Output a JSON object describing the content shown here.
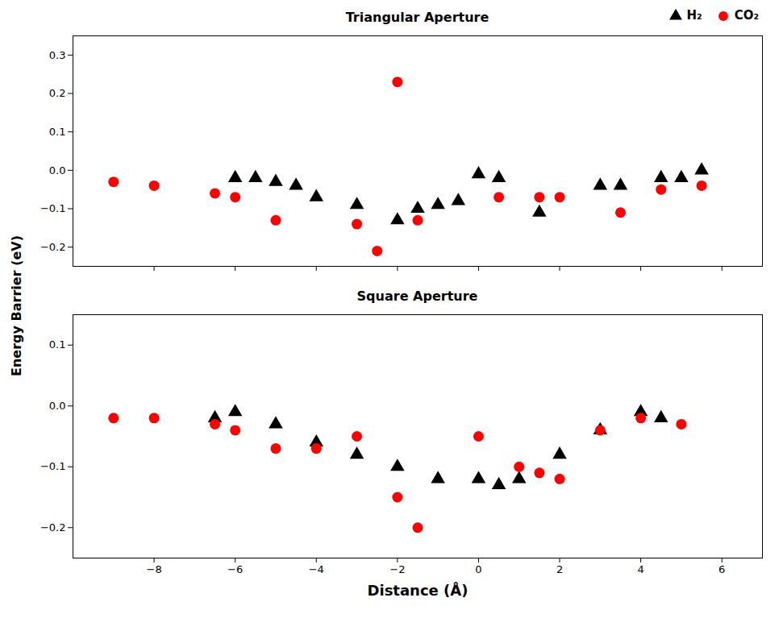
{
  "chart_data": [
    {
      "type": "scatter",
      "title": "Triangular Aperture",
      "ylabel": "Energy Barrier (eV)",
      "series": [
        {
          "name": "H₂",
          "color": "#000000",
          "marker": "triangle",
          "x": [
            -6.0,
            -5.5,
            -5.0,
            -4.5,
            -4.0,
            -3.0,
            -2.0,
            -1.5,
            -1.0,
            -0.5,
            0.0,
            0.5,
            1.5,
            3.0,
            3.5,
            4.5,
            5.0,
            5.5
          ],
          "values": [
            -0.02,
            -0.02,
            -0.03,
            -0.04,
            -0.07,
            -0.09,
            -0.13,
            -0.1,
            -0.09,
            -0.08,
            -0.01,
            -0.02,
            -0.11,
            -0.04,
            -0.04,
            -0.02,
            -0.02,
            0.0
          ]
        },
        {
          "name": "CO₂",
          "color": "#ff0000",
          "marker": "circle",
          "x": [
            -9.0,
            -8.0,
            -6.5,
            -6.0,
            -5.0,
            -3.0,
            -2.5,
            -2.0,
            -1.5,
            0.5,
            1.5,
            2.0,
            3.5,
            4.5,
            5.5
          ],
          "values": [
            -0.03,
            -0.04,
            -0.06,
            -0.07,
            -0.13,
            -0.14,
            -0.21,
            0.23,
            -0.13,
            -0.07,
            -0.07,
            -0.07,
            -0.11,
            -0.05,
            -0.04
          ]
        }
      ],
      "xlim": [
        -10,
        7
      ],
      "xticks": [
        -8,
        -6,
        -4,
        -2,
        0,
        2,
        4,
        6
      ],
      "ylim": [
        -0.25,
        0.35
      ],
      "yticks": [
        -0.2,
        -0.1,
        {
          "value": 0.0,
          "label": "0.0"
        },
        0.1,
        0.2,
        0.3
      ],
      "tick_labels": "y",
      "legend": "upper right",
      "grid": false
    },
    {
      "type": "scatter",
      "title": "Square Aperture",
      "xlabel": "Distance (Å)",
      "series": [
        {
          "name": "H₂",
          "color": "#000000",
          "marker": "triangle",
          "x": [
            -6.5,
            -6.0,
            -5.0,
            -4.0,
            -3.0,
            -2.0,
            -1.0,
            0.0,
            0.5,
            1.0,
            2.0,
            3.0,
            4.0,
            4.5
          ],
          "values": [
            -0.02,
            -0.01,
            -0.03,
            -0.06,
            -0.08,
            -0.1,
            -0.12,
            -0.12,
            -0.13,
            -0.12,
            -0.08,
            -0.04,
            -0.01,
            -0.02
          ]
        },
        {
          "name": "CO₂",
          "color": "#ff0000",
          "marker": "circle",
          "x": [
            -9.0,
            -8.0,
            -6.5,
            -6.0,
            -5.0,
            -4.0,
            -3.0,
            -2.0,
            -1.5,
            0.0,
            1.0,
            1.5,
            2.0,
            3.0,
            4.0,
            5.0
          ],
          "values": [
            -0.02,
            -0.02,
            -0.03,
            -0.04,
            -0.07,
            -0.07,
            -0.05,
            -0.15,
            -0.2,
            -0.05,
            -0.1,
            -0.11,
            -0.12,
            -0.04,
            -0.02,
            -0.03
          ]
        }
      ],
      "xlim": [
        -10,
        7
      ],
      "xticks": [
        -8,
        -6,
        -4,
        -2,
        0,
        2,
        4,
        6
      ],
      "ylim": [
        -0.25,
        0.15
      ],
      "yticks": [
        -0.2,
        -0.1,
        {
          "value": 0.0,
          "label": "0.0"
        },
        0.1
      ],
      "grid": false
    }
  ]
}
